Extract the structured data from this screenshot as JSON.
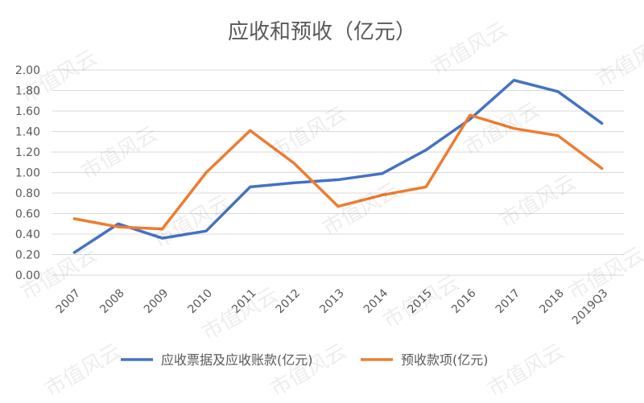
{
  "chart_data": {
    "type": "line",
    "title": "应收和预收（亿元）",
    "categories": [
      "2007",
      "2008",
      "2009",
      "2010",
      "2011",
      "2012",
      "2013",
      "2014",
      "2015",
      "2016",
      "2017",
      "2018",
      "2019Q3"
    ],
    "series": [
      {
        "name": "应收票据及应收账款(亿元)",
        "color": "#4472C4",
        "values": [
          0.22,
          0.5,
          0.36,
          0.43,
          0.86,
          0.9,
          0.93,
          0.99,
          1.22,
          1.52,
          1.9,
          1.79,
          1.48
        ]
      },
      {
        "name": "预收款项(亿元)",
        "color": "#ED7D31",
        "values": [
          0.55,
          0.47,
          0.45,
          1.0,
          1.41,
          1.09,
          0.67,
          0.78,
          0.86,
          1.56,
          1.43,
          1.36,
          1.04
        ]
      }
    ],
    "y_ticks": [
      "0.00",
      "0.20",
      "0.40",
      "0.60",
      "0.80",
      "1.00",
      "1.20",
      "1.40",
      "1.60",
      "1.80",
      "2.00"
    ],
    "ylim": [
      0,
      2.0
    ],
    "grid": true,
    "legend": "bottom"
  },
  "watermark": "市值风云"
}
